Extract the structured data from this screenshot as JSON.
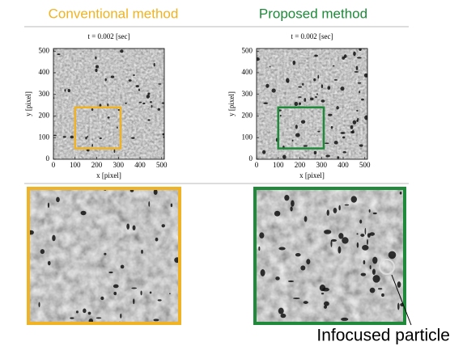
{
  "chart_data": [
    {
      "type": "image",
      "heading": "Conventional method",
      "title": "t = 0.002 [sec]",
      "xlabel": "x [pixel]",
      "ylabel": "y [pixel]",
      "xlim": [
        0,
        512
      ],
      "ylim": [
        0,
        512
      ],
      "xticks": [
        0,
        100,
        200,
        300,
        400,
        500
      ],
      "yticks": [
        0,
        100,
        200,
        300,
        400,
        500
      ],
      "color": "#f0b323",
      "highlight": {
        "x": [
          100,
          310
        ],
        "y": [
          50,
          240
        ]
      }
    },
    {
      "type": "image",
      "heading": "Proposed method",
      "title": "t = 0.002 [sec]",
      "xlabel": "x [pixel]",
      "ylabel": "y [pixel]",
      "xlim": [
        0,
        512
      ],
      "ylim": [
        0,
        512
      ],
      "xticks": [
        0,
        100,
        200,
        300,
        400,
        500
      ],
      "yticks": [
        0,
        100,
        200,
        300,
        400,
        500
      ],
      "color": "#1e8a3a",
      "highlight": {
        "x": [
          100,
          310
        ],
        "y": [
          50,
          240
        ]
      },
      "annotation": "Infocused particle"
    }
  ]
}
